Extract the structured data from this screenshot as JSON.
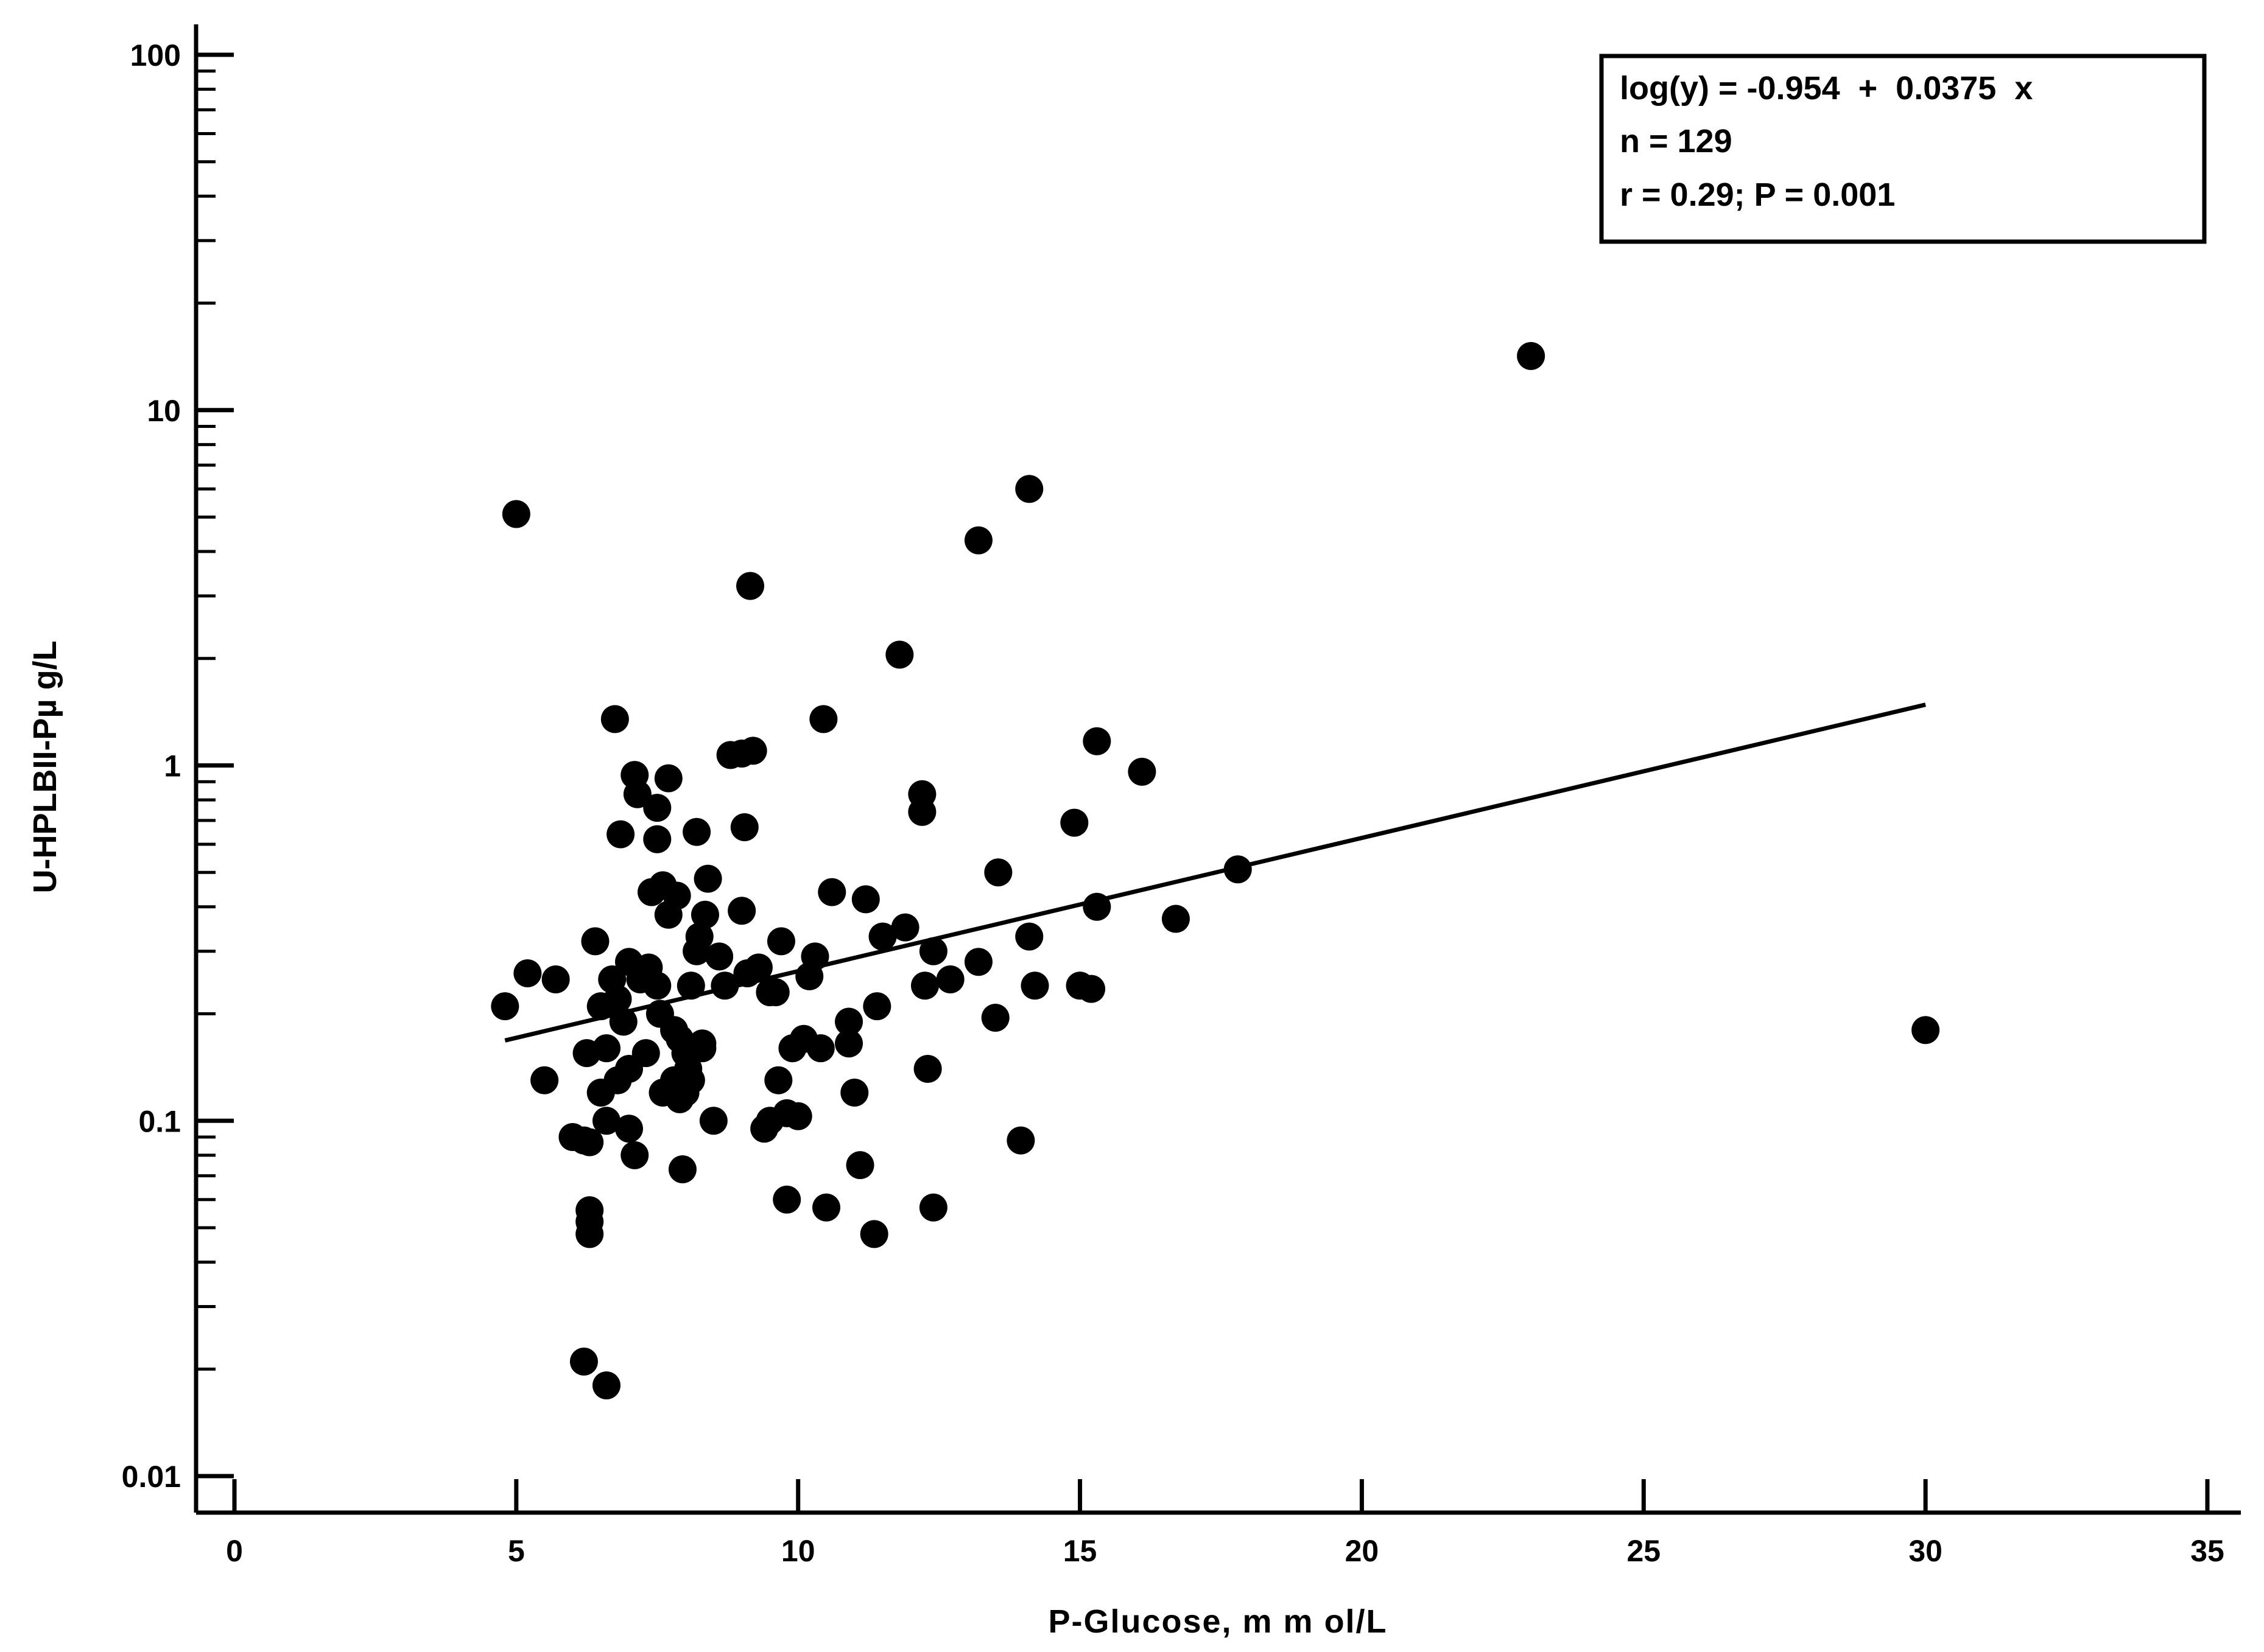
{
  "chart_data": {
    "type": "scatter",
    "title": "",
    "xlabel": "P-Glucose, m m ol/L",
    "ylabel": "U-HPLBII-Pµ g/L",
    "xlim": [
      0,
      35
    ],
    "ylim": [
      0.01,
      100
    ],
    "yscale": "log",
    "grid": false,
    "x_ticks": [
      0,
      5,
      10,
      15,
      20,
      25,
      30,
      35
    ],
    "x_tick_labels": [
      "0",
      "5",
      "10",
      "15",
      "20",
      "25",
      "30",
      "35"
    ],
    "y_ticks": [
      0.01,
      0.1,
      1,
      10,
      100
    ],
    "y_tick_labels": [
      "0.01",
      "0.1",
      "1",
      "10",
      "100"
    ],
    "stats_box": {
      "equation": "log(y) = -0.954  +  0.0375  x",
      "n": "n = 129",
      "r_p": "r = 0.29; P = 0.001"
    },
    "regression": {
      "intercept": -0.954,
      "slope": 0.0375,
      "x_start": 4.8,
      "x_end": 30
    },
    "series": [
      {
        "points": [
          [
            5.0,
            5.1
          ],
          [
            4.8,
            0.21
          ],
          [
            5.2,
            0.26
          ],
          [
            5.5,
            0.13
          ],
          [
            5.7,
            0.25
          ],
          [
            6.0,
            0.09
          ],
          [
            6.2,
            0.088
          ],
          [
            6.3,
            0.087
          ],
          [
            6.25,
            0.155
          ],
          [
            6.3,
            0.056
          ],
          [
            6.3,
            0.052
          ],
          [
            6.3,
            0.048
          ],
          [
            6.4,
            0.32
          ],
          [
            6.5,
            0.21
          ],
          [
            6.5,
            0.12
          ],
          [
            6.6,
            0.1
          ],
          [
            6.6,
            0.16
          ],
          [
            6.7,
            0.25
          ],
          [
            6.8,
            0.22
          ],
          [
            6.8,
            0.13
          ],
          [
            6.9,
            0.19
          ],
          [
            6.75,
            1.35
          ],
          [
            6.85,
            0.64
          ],
          [
            7.0,
            0.28
          ],
          [
            7.0,
            0.14
          ],
          [
            7.0,
            0.095
          ],
          [
            7.1,
            0.08
          ],
          [
            7.1,
            0.94
          ],
          [
            7.15,
            0.83
          ],
          [
            7.2,
            0.25
          ],
          [
            7.3,
            0.155
          ],
          [
            7.4,
            0.44
          ],
          [
            7.5,
            0.76
          ],
          [
            7.5,
            0.62
          ],
          [
            7.5,
            0.24
          ],
          [
            7.55,
            0.2
          ],
          [
            7.6,
            0.46
          ],
          [
            7.6,
            0.12
          ],
          [
            7.7,
            0.92
          ],
          [
            7.7,
            0.38
          ],
          [
            7.8,
            0.18
          ],
          [
            7.8,
            0.13
          ],
          [
            7.85,
            0.43
          ],
          [
            7.9,
            0.17
          ],
          [
            7.9,
            0.115
          ],
          [
            7.95,
            0.073
          ],
          [
            8.0,
            0.155
          ],
          [
            8.0,
            0.12
          ],
          [
            8.1,
            0.24
          ],
          [
            8.1,
            0.13
          ],
          [
            8.2,
            0.65
          ],
          [
            8.2,
            0.3
          ],
          [
            8.25,
            0.33
          ],
          [
            8.3,
            0.16
          ],
          [
            8.3,
            0.165
          ],
          [
            8.35,
            0.38
          ],
          [
            8.4,
            0.48
          ],
          [
            8.5,
            0.1
          ],
          [
            8.6,
            0.29
          ],
          [
            8.7,
            0.24
          ],
          [
            8.8,
            1.07
          ],
          [
            9.0,
            1.08
          ],
          [
            9.0,
            0.39
          ],
          [
            9.05,
            0.67
          ],
          [
            9.1,
            0.26
          ],
          [
            9.2,
            1.1
          ],
          [
            9.15,
            3.2
          ],
          [
            9.3,
            0.27
          ],
          [
            9.4,
            0.095
          ],
          [
            9.5,
            0.1
          ],
          [
            9.6,
            0.23
          ],
          [
            9.65,
            0.13
          ],
          [
            9.7,
            0.32
          ],
          [
            9.8,
            0.105
          ],
          [
            9.8,
            0.06
          ],
          [
            9.9,
            0.16
          ],
          [
            10.0,
            0.103
          ],
          [
            10.1,
            0.17
          ],
          [
            10.2,
            0.255
          ],
          [
            10.3,
            0.29
          ],
          [
            10.4,
            0.16
          ],
          [
            10.45,
            1.35
          ],
          [
            10.5,
            0.057
          ],
          [
            10.6,
            0.44
          ],
          [
            10.9,
            0.19
          ],
          [
            10.9,
            0.165
          ],
          [
            11.0,
            0.12
          ],
          [
            11.1,
            0.075
          ],
          [
            11.2,
            0.42
          ],
          [
            11.35,
            0.048
          ],
          [
            11.4,
            0.21
          ],
          [
            11.5,
            0.33
          ],
          [
            11.8,
            2.05
          ],
          [
            11.9,
            0.35
          ],
          [
            12.2,
            0.83
          ],
          [
            12.2,
            0.74
          ],
          [
            12.25,
            0.24
          ],
          [
            12.3,
            0.14
          ],
          [
            12.4,
            0.057
          ],
          [
            12.4,
            0.3
          ],
          [
            12.7,
            0.25
          ],
          [
            13.2,
            4.3
          ],
          [
            13.2,
            0.28
          ],
          [
            13.5,
            0.195
          ],
          [
            13.55,
            0.5
          ],
          [
            13.95,
            0.088
          ],
          [
            14.1,
            6.0
          ],
          [
            14.1,
            0.33
          ],
          [
            14.2,
            0.24
          ],
          [
            14.9,
            0.69
          ],
          [
            15.0,
            0.24
          ],
          [
            15.2,
            0.235
          ],
          [
            15.3,
            1.17
          ],
          [
            15.3,
            0.4
          ],
          [
            16.1,
            0.96
          ],
          [
            16.7,
            0.37
          ],
          [
            17.8,
            0.51
          ],
          [
            23.0,
            14.2
          ],
          [
            30.0,
            0.18
          ],
          [
            6.2,
            0.021
          ],
          [
            6.6,
            0.018
          ],
          [
            7.35,
            0.27
          ],
          [
            8.05,
            0.14
          ],
          [
            9.5,
            0.23
          ]
        ]
      }
    ]
  }
}
